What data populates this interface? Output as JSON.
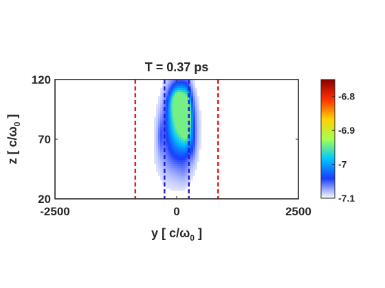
{
  "chart_data": {
    "type": "heatmap",
    "title": "T = 0.37 ps",
    "xlabel": {
      "text": "y [ c/",
      "symbol": "ω",
      "sub": "0",
      "tail": " ]"
    },
    "ylabel": {
      "text": "z [ c/",
      "symbol": "ω",
      "sub": "0",
      "tail": " ]"
    },
    "xlim": [
      -2500,
      2500
    ],
    "ylim": [
      20,
      120
    ],
    "xticks": [
      {
        "value": -2500,
        "label": "-2500"
      },
      {
        "value": 0,
        "label": "0"
      },
      {
        "value": 2500,
        "label": "2500"
      }
    ],
    "yticks": [
      {
        "value": 20,
        "label": "20"
      },
      {
        "value": 70,
        "label": "70"
      },
      {
        "value": 120,
        "label": "120"
      }
    ],
    "vertical_lines": [
      {
        "x": -850,
        "color": "#e41a1c",
        "style": "dashed"
      },
      {
        "x": 850,
        "color": "#e41a1c",
        "style": "dashed"
      },
      {
        "x": -250,
        "color": "#1f1fd6",
        "style": "dashed"
      },
      {
        "x": 250,
        "color": "#1f1fd6",
        "style": "dashed"
      }
    ],
    "blobs": [
      {
        "x": 50,
        "y": 95,
        "sx": 160,
        "sy": 16,
        "v": 0.85,
        "rot": 0
      },
      {
        "x": 200,
        "y": 90,
        "sx": 70,
        "sy": 14,
        "v": 0.75,
        "rot": 0
      },
      {
        "x": 20,
        "y": 101,
        "sx": 90,
        "sy": 7,
        "v": 0.6,
        "rot": 0
      },
      {
        "x": 150,
        "y": 77,
        "sx": 160,
        "sy": 16,
        "v": 0.4,
        "rot": 0
      },
      {
        "x": -100,
        "y": 74,
        "sx": 200,
        "sy": 20,
        "v": 0.22,
        "rot": 0
      },
      {
        "x": 0,
        "y": 55,
        "sx": 260,
        "sy": 18,
        "v": 0.12,
        "rot": 0
      },
      {
        "x": -330,
        "y": 73,
        "sx": 40,
        "sy": 10,
        "v": 0.15,
        "rot": 0
      },
      {
        "x": 330,
        "y": 65,
        "sx": 45,
        "sy": 9,
        "v": 0.13,
        "rot": 0
      },
      {
        "x": 150,
        "y": 42,
        "sx": 80,
        "sy": 8,
        "v": 0.06,
        "rot": 0
      }
    ],
    "colorbar": {
      "range": [
        -7.1,
        -6.75
      ],
      "ticks": [
        {
          "value": -7.1,
          "label": "-7.1"
        },
        {
          "value": -7.0,
          "label": "-7"
        },
        {
          "value": -6.9,
          "label": "-6.9"
        },
        {
          "value": -6.8,
          "label": "-6.8"
        }
      ],
      "colormap": [
        "#ffffff",
        "#1a3cff",
        "#00c8ff",
        "#a8ff50",
        "#ffd000",
        "#ff3000",
        "#8b0000"
      ]
    },
    "grid": false,
    "legend": "none"
  }
}
